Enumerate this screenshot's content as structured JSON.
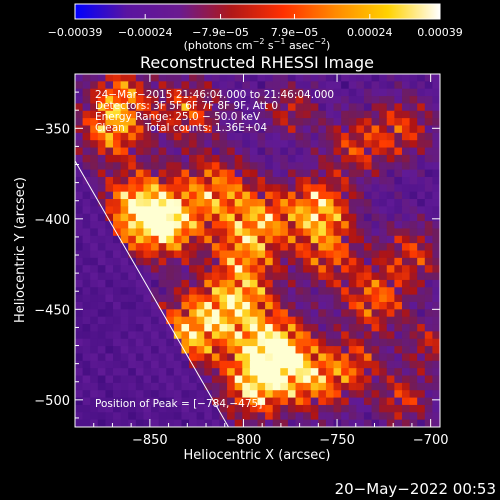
{
  "chart_data": {
    "type": "heatmap",
    "title": "Reconstructed RHESSI Image",
    "xlabel": "Heliocentric X (arcsec)",
    "ylabel": "Heliocentric Y (arcsec)",
    "xlim": [
      -890,
      -695
    ],
    "ylim": [
      -515,
      -320
    ],
    "x_ticks": [
      -850,
      -800,
      -750,
      -700
    ],
    "y_ticks": [
      -350,
      -400,
      -450,
      -500
    ],
    "x_tick_labels": [
      "−850",
      "−800",
      "−750",
      "−700"
    ],
    "y_tick_labels": [
      "−350",
      "−400",
      "−450",
      "−500"
    ],
    "colorbar": {
      "min": -0.00039,
      "max": 0.00039,
      "tick_labels": [
        "−0.00039",
        "−0.00024",
        "−7.9e−05",
        "7.9e−05",
        "0.00024",
        "0.00039"
      ],
      "unit_main": "(photons cm",
      "unit_exp1": "−2",
      "unit_mid": " s",
      "unit_exp2": "−1",
      "unit_mid2": " asec",
      "unit_exp3": "−2",
      "unit_end": ")"
    },
    "annotations": {
      "time_range": "24−Mar−2015 21:46:04.000 to 21:46:04.000",
      "detectors": "Detectors: 3F 5F 6F 7F 8F 9F, Att 0",
      "energy": "Energy Range: 25.0 − 50.0 keV",
      "clean_label": "Clean",
      "counts": "Total counts: 1.36E+04",
      "peak": "Position of Peak = [−784,−475]"
    },
    "peak_position": [
      -784,
      -475
    ],
    "limb_line": {
      "x1": -890,
      "y1": -368,
      "x2": -808,
      "y2": -515
    },
    "grid": false,
    "colors": {
      "background": "#000000",
      "colormap": [
        "#0000ff",
        "#5a14a0",
        "#6a1a90",
        "#b01818",
        "#ff3000",
        "#ff8a00",
        "#ffd200",
        "#ffffff"
      ]
    }
  },
  "footer": {
    "date": "20−May−2022 00:53"
  }
}
